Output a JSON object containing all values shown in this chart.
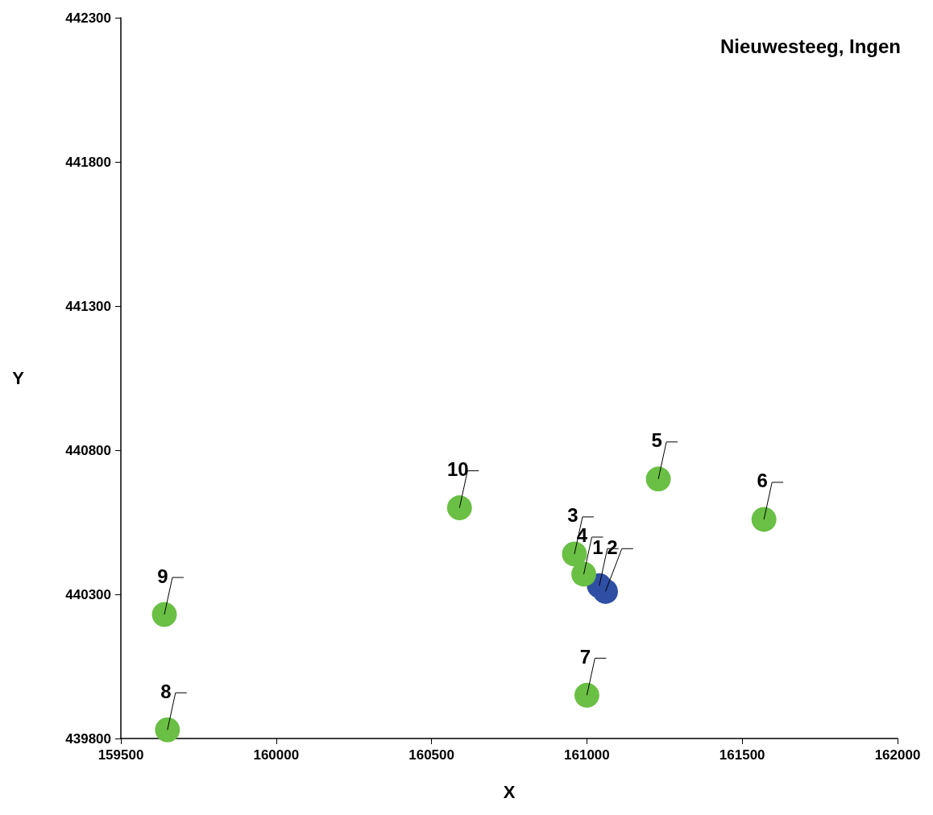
{
  "chart_data": {
    "type": "scatter",
    "title": "Nieuwesteeg, Ingen",
    "xlabel": "X",
    "ylabel": "Y",
    "x": [
      161040,
      161060,
      160960,
      160990,
      161230,
      161570,
      161000,
      159650,
      159640,
      160590
    ],
    "values": [
      440330,
      440310,
      440440,
      440370,
      440700,
      440560,
      439950,
      439830,
      440230,
      440600
    ],
    "annotations": [
      {
        "text": "1",
        "x": 161040,
        "y": 440330
      },
      {
        "text": "2",
        "x": 161060,
        "y": 440310
      },
      {
        "text": "3",
        "x": 160960,
        "y": 440440
      },
      {
        "text": "4",
        "x": 160990,
        "y": 440370
      },
      {
        "text": "5",
        "x": 161230,
        "y": 440700
      },
      {
        "text": "6",
        "x": 161570,
        "y": 440560
      },
      {
        "text": "7",
        "x": 161000,
        "y": 439950
      },
      {
        "text": "8",
        "x": 159650,
        "y": 439830
      },
      {
        "text": "9",
        "x": 159640,
        "y": 440230
      },
      {
        "text": "10",
        "x": 160590,
        "y": 440600
      }
    ],
    "colors": [
      "#2e4fa3",
      "#2e4fa3",
      "#6abf45",
      "#6abf45",
      "#6abf45",
      "#6abf45",
      "#6abf45",
      "#6abf45",
      "#6abf45",
      "#6abf45"
    ],
    "xlim": [
      159500,
      162000
    ],
    "xticks": [
      159500,
      160000,
      160500,
      161000,
      161500,
      162000
    ],
    "ylim": [
      439800,
      442300
    ],
    "yticks": [
      439800,
      440300,
      440800,
      441300,
      441800,
      442300
    ],
    "marker": "circle",
    "grid": false
  }
}
